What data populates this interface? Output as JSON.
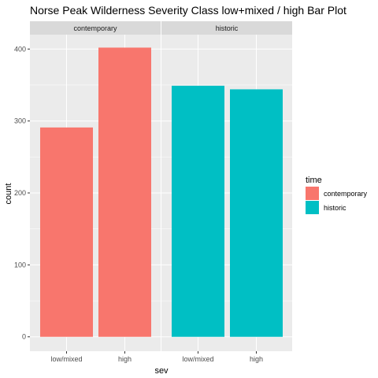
{
  "chart_data": {
    "type": "bar",
    "title": "Norse Peak Wilderness Severity Class low+mixed / high Bar Plot",
    "xlabel": "sev",
    "ylabel": "count",
    "ylim": [
      -20,
      420
    ],
    "yticks": [
      0,
      100,
      200,
      300,
      400
    ],
    "categories": [
      "low/mixed",
      "high"
    ],
    "panels": [
      {
        "name": "contemporary",
        "values": [
          291,
          402
        ]
      },
      {
        "name": "historic",
        "values": [
          349,
          344
        ]
      }
    ],
    "series": [
      {
        "name": "contemporary",
        "color": "#F8766D"
      },
      {
        "name": "historic",
        "color": "#00BFC4"
      }
    ],
    "legend": {
      "title": "time",
      "position": "right"
    },
    "grid": true,
    "panel_background": "#EBEBEB",
    "strip_background": "#D9D9D9",
    "gridline_color": "#FFFFFF"
  }
}
